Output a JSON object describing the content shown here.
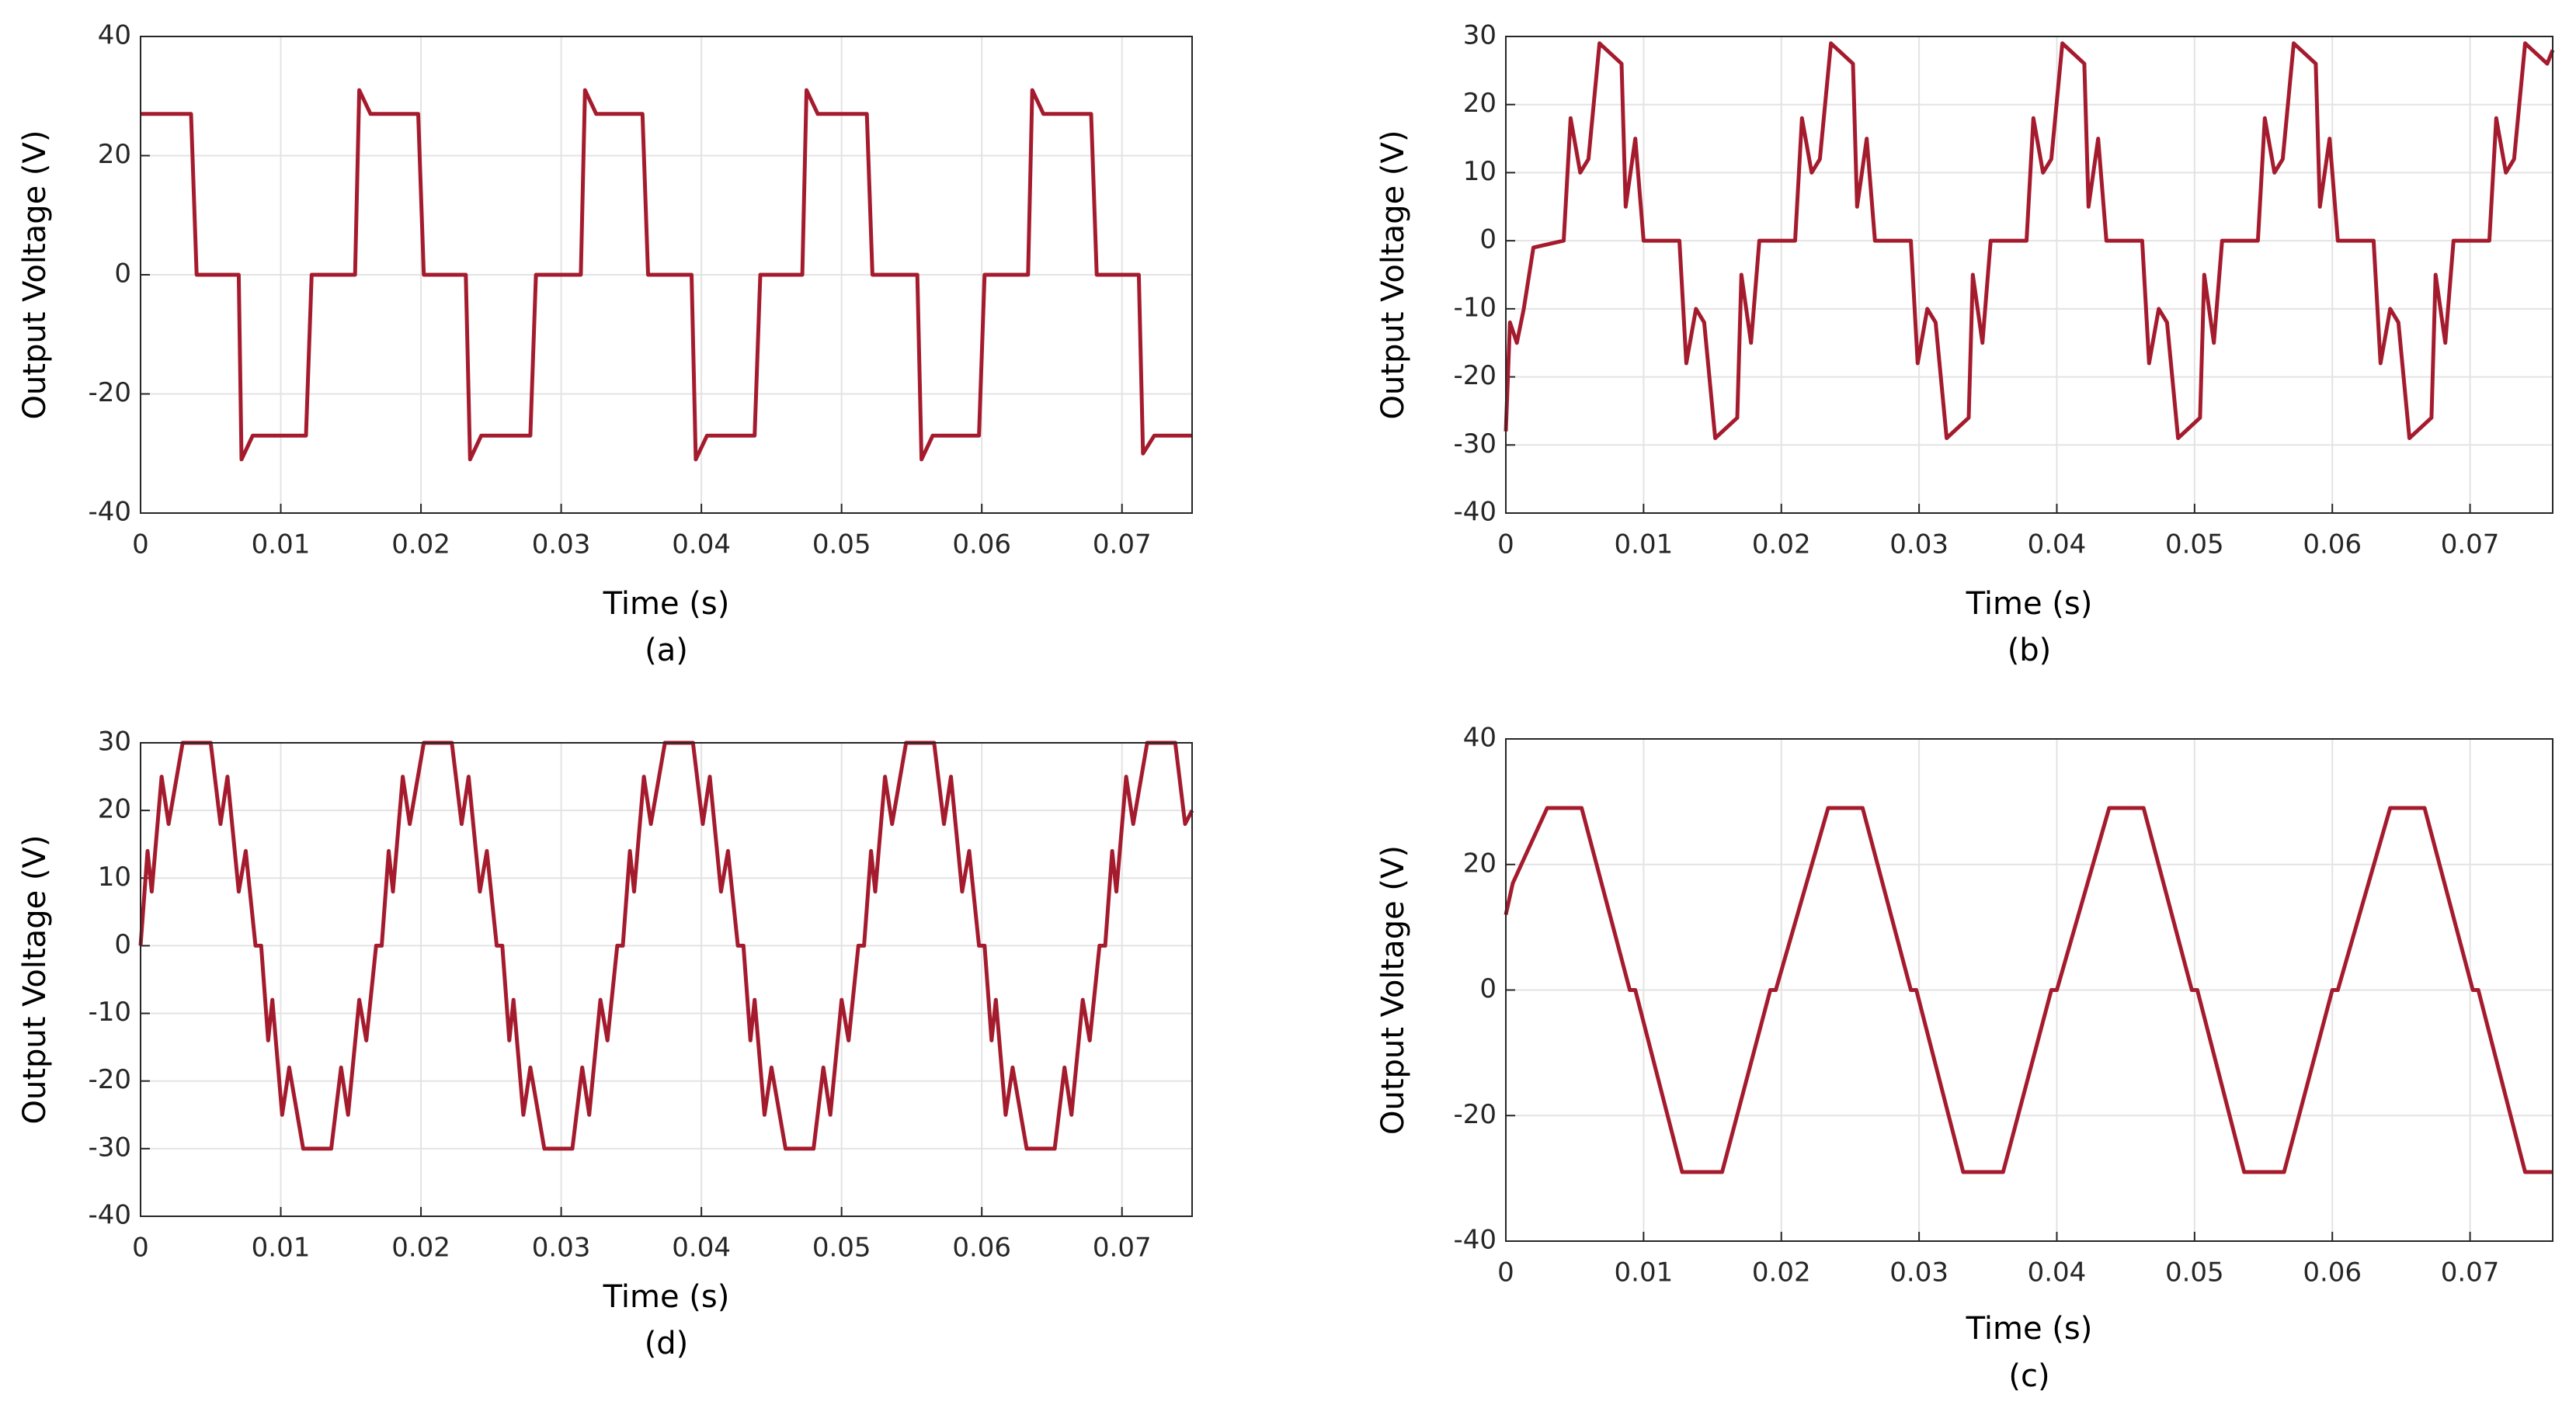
{
  "chart_data": [
    {
      "type": "line",
      "y_label": "Output Voltage (V)",
      "x_label": "Time (s)",
      "caption": "(a)",
      "color": "#a51b2e",
      "grid": true,
      "xlim": [
        0,
        0.075
      ],
      "xticks": [
        0,
        0.01,
        0.02,
        0.03,
        0.04,
        0.05,
        0.06,
        0.07
      ],
      "ylim": [
        -40,
        40
      ],
      "yticks": [
        -40,
        -20,
        0,
        20,
        40
      ],
      "x": [
        0,
        0.0036,
        0.004,
        0.007,
        0.0072,
        0.008,
        0.0118,
        0.0122,
        0.0153,
        0.0156,
        0.0164,
        0.0198,
        0.0202,
        0.0232,
        0.0235,
        0.0243,
        0.0278,
        0.0282,
        0.0314,
        0.0317,
        0.0325,
        0.0358,
        0.0362,
        0.0393,
        0.0396,
        0.0404,
        0.0438,
        0.0442,
        0.0472,
        0.0475,
        0.0483,
        0.0518,
        0.0522,
        0.0554,
        0.0557,
        0.0565,
        0.0598,
        0.0602,
        0.0633,
        0.0636,
        0.0644,
        0.0678,
        0.0682,
        0.0712,
        0.0715,
        0.0723,
        0.075
      ],
      "values": [
        27,
        27,
        0,
        0,
        -31,
        -27,
        -27,
        0,
        0,
        31,
        27,
        27,
        0,
        0,
        -31,
        -27,
        -27,
        0,
        0,
        31,
        27,
        27,
        0,
        0,
        -31,
        -27,
        -27,
        0,
        0,
        31,
        27,
        27,
        0,
        0,
        -31,
        -27,
        -27,
        0,
        0,
        31,
        27,
        27,
        0,
        0,
        -30,
        -27,
        -27
      ]
    },
    {
      "type": "line",
      "y_label": "Output Voltage (V)",
      "x_label": "Time (s)",
      "caption": "(b)",
      "color": "#a51b2e",
      "grid": true,
      "xlim": [
        0,
        0.076
      ],
      "xticks": [
        0,
        0.01,
        0.02,
        0.03,
        0.04,
        0.05,
        0.06,
        0.07
      ],
      "ylim": [
        -40,
        30
      ],
      "yticks": [
        -40,
        -30,
        -20,
        -10,
        0,
        10,
        20,
        30
      ],
      "x": [
        0,
        0.0003,
        0.0008,
        0.0013,
        0.002,
        0.0042,
        0.0047,
        0.0054,
        0.006,
        0.0068,
        0.0084,
        0.0087,
        0.0094,
        0.01,
        0.0126,
        0.0131,
        0.0138,
        0.0144,
        0.0152,
        0.0168,
        0.0171,
        0.0178,
        0.0184,
        0.021,
        0.0215,
        0.0222,
        0.0228,
        0.0236,
        0.0252,
        0.0255,
        0.0262,
        0.0268,
        0.0294,
        0.0299,
        0.0306,
        0.0312,
        0.032,
        0.0336,
        0.0339,
        0.0346,
        0.0352,
        0.0378,
        0.0383,
        0.039,
        0.0396,
        0.0404,
        0.042,
        0.0423,
        0.043,
        0.0436,
        0.0462,
        0.0467,
        0.0474,
        0.048,
        0.0488,
        0.0504,
        0.0507,
        0.0514,
        0.052,
        0.0546,
        0.0551,
        0.0558,
        0.0564,
        0.0572,
        0.0588,
        0.0591,
        0.0598,
        0.0604,
        0.063,
        0.0635,
        0.0642,
        0.0648,
        0.0656,
        0.0672,
        0.0675,
        0.0682,
        0.0688,
        0.0714,
        0.0719,
        0.0726,
        0.0732,
        0.074,
        0.0756,
        0.076
      ],
      "values": [
        -28,
        -12,
        -15,
        -10,
        -1,
        0,
        18,
        10,
        12,
        29,
        26,
        5,
        15,
        0,
        0,
        -18,
        -10,
        -12,
        -29,
        -26,
        -5,
        -15,
        0,
        0,
        18,
        10,
        12,
        29,
        26,
        5,
        15,
        0,
        0,
        -18,
        -10,
        -12,
        -29,
        -26,
        -5,
        -15,
        0,
        0,
        18,
        10,
        12,
        29,
        26,
        5,
        15,
        0,
        0,
        -18,
        -10,
        -12,
        -29,
        -26,
        -5,
        -15,
        0,
        0,
        18,
        10,
        12,
        29,
        26,
        5,
        15,
        0,
        0,
        -18,
        -10,
        -12,
        -29,
        -26,
        -5,
        -15,
        0,
        0,
        18,
        10,
        12,
        29,
        26,
        28
      ]
    },
    {
      "type": "line",
      "y_label": "Output Voltage (V)",
      "x_label": "Time (s)",
      "caption": "(d)",
      "color": "#a51b2e",
      "grid": true,
      "xlim": [
        0,
        0.075
      ],
      "xticks": [
        0,
        0.01,
        0.02,
        0.03,
        0.04,
        0.05,
        0.06,
        0.07
      ],
      "ylim": [
        -40,
        30
      ],
      "yticks": [
        -40,
        -30,
        -20,
        -10,
        0,
        10,
        20,
        30
      ],
      "x": [
        0,
        0.0005,
        0.0008,
        0.0015,
        0.002,
        0.003,
        0.005,
        0.0057,
        0.0062,
        0.007,
        0.0075,
        0.0082,
        0.0086,
        0.0091,
        0.0094,
        0.0101,
        0.0106,
        0.0116,
        0.0136,
        0.0143,
        0.0148,
        0.0156,
        0.0161,
        0.0168,
        0.0172,
        0.0177,
        0.018,
        0.0187,
        0.0192,
        0.0202,
        0.0222,
        0.0229,
        0.0234,
        0.0242,
        0.0247,
        0.0254,
        0.0258,
        0.0263,
        0.0266,
        0.0273,
        0.0278,
        0.0288,
        0.0308,
        0.0315,
        0.032,
        0.0328,
        0.0333,
        0.034,
        0.0344,
        0.0349,
        0.0352,
        0.0359,
        0.0364,
        0.0374,
        0.0394,
        0.0401,
        0.0406,
        0.0414,
        0.0419,
        0.0426,
        0.043,
        0.0435,
        0.0438,
        0.0445,
        0.045,
        0.046,
        0.048,
        0.0487,
        0.0492,
        0.05,
        0.0505,
        0.0512,
        0.0516,
        0.0521,
        0.0524,
        0.0531,
        0.0536,
        0.0546,
        0.0566,
        0.0573,
        0.0578,
        0.0586,
        0.0591,
        0.0598,
        0.0602,
        0.0607,
        0.061,
        0.0617,
        0.0622,
        0.0632,
        0.0652,
        0.0659,
        0.0664,
        0.0672,
        0.0677,
        0.0684,
        0.0688,
        0.0693,
        0.0696,
        0.0703,
        0.0708,
        0.0718,
        0.0738,
        0.0745,
        0.075
      ],
      "values": [
        0,
        14,
        8,
        25,
        18,
        30,
        30,
        18,
        25,
        8,
        14,
        0,
        0,
        -14,
        -8,
        -25,
        -18,
        -30,
        -30,
        -18,
        -25,
        -8,
        -14,
        0,
        0,
        14,
        8,
        25,
        18,
        30,
        30,
        18,
        25,
        8,
        14,
        0,
        0,
        -14,
        -8,
        -25,
        -18,
        -30,
        -30,
        -18,
        -25,
        -8,
        -14,
        0,
        0,
        14,
        8,
        25,
        18,
        30,
        30,
        18,
        25,
        8,
        14,
        0,
        0,
        -14,
        -8,
        -25,
        -18,
        -30,
        -30,
        -18,
        -25,
        -8,
        -14,
        0,
        0,
        14,
        8,
        25,
        18,
        30,
        30,
        18,
        25,
        8,
        14,
        0,
        0,
        -14,
        -8,
        -25,
        -18,
        -30,
        -30,
        -18,
        -25,
        -8,
        -14,
        0,
        0,
        14,
        8,
        25,
        18,
        30,
        30,
        18,
        20
      ]
    },
    {
      "type": "line",
      "y_label": "Output Voltage (V)",
      "x_label": "Time (s)",
      "caption": "(c)",
      "color": "#a51b2e",
      "grid": true,
      "xlim": [
        0,
        0.076
      ],
      "xticks": [
        0,
        0.01,
        0.02,
        0.03,
        0.04,
        0.05,
        0.06,
        0.07
      ],
      "ylim": [
        -40,
        40
      ],
      "yticks": [
        -40,
        -20,
        0,
        20,
        40
      ],
      "x": [
        0,
        0.0005,
        0.003,
        0.0055,
        0.009,
        0.0094,
        0.0128,
        0.0157,
        0.0192,
        0.0196,
        0.0234,
        0.0259,
        0.0294,
        0.0298,
        0.0332,
        0.0361,
        0.0396,
        0.04,
        0.0438,
        0.0463,
        0.0498,
        0.0502,
        0.0536,
        0.0565,
        0.06,
        0.0604,
        0.0642,
        0.0667,
        0.0702,
        0.0706,
        0.074,
        0.076
      ],
      "values": [
        12,
        17,
        29,
        29,
        0,
        0,
        -29,
        -29,
        0,
        0,
        29,
        29,
        0,
        0,
        -29,
        -29,
        0,
        0,
        29,
        29,
        0,
        0,
        -29,
        -29,
        0,
        0,
        29,
        29,
        0,
        0,
        -29,
        -29
      ]
    }
  ]
}
